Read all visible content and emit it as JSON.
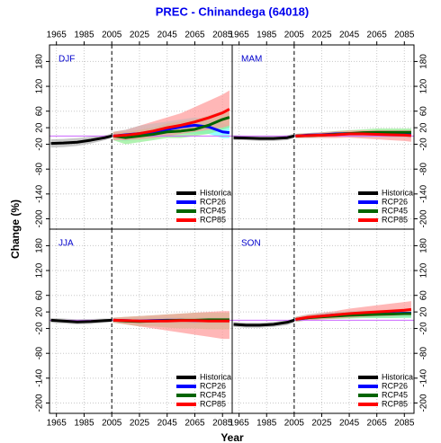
{
  "title": "PREC  - Chinandega (64018)",
  "x_label": "Year",
  "y_label": "Change (%)",
  "chart_data": [
    {
      "type": "line",
      "label": "DJF",
      "xlim": [
        1960,
        2092
      ],
      "ylim": [
        -225,
        220
      ],
      "xticks": [
        1965,
        1985,
        2005,
        2025,
        2045,
        2065,
        2085
      ],
      "yticks": [
        -200,
        -140,
        -80,
        -20,
        20,
        60,
        120,
        180
      ],
      "grid": true,
      "divider": 2005,
      "reference_line": 0,
      "legend": "lower right",
      "series": [
        {
          "name": "Historical",
          "color": "#000000",
          "band_color": "#b0b0b0",
          "x": [
            1961,
            1970,
            1980,
            1990,
            2000,
            2005
          ],
          "values": [
            -18,
            -17,
            -15,
            -10,
            -4,
            0
          ],
          "lower": [
            -28,
            -27,
            -24,
            -18,
            -10,
            -5
          ],
          "upper": [
            -8,
            -7,
            -5,
            -2,
            2,
            5
          ]
        },
        {
          "name": "RCP26",
          "color": "#0000ff",
          "band_color": "#66ffff",
          "x": [
            2006,
            2015,
            2025,
            2035,
            2045,
            2055,
            2065,
            2075,
            2085,
            2090
          ],
          "values": [
            0,
            3,
            6,
            10,
            16,
            22,
            26,
            22,
            10,
            8
          ],
          "lower": [
            -10,
            -12,
            -8,
            -5,
            0,
            5,
            5,
            5,
            -5,
            -5
          ],
          "upper": [
            10,
            15,
            25,
            30,
            35,
            40,
            45,
            40,
            30,
            25
          ]
        },
        {
          "name": "RCP45",
          "color": "#006400",
          "band_color": "#90ee90",
          "x": [
            2006,
            2015,
            2025,
            2035,
            2045,
            2055,
            2065,
            2075,
            2085,
            2090
          ],
          "values": [
            0,
            -4,
            0,
            4,
            10,
            12,
            16,
            26,
            40,
            45
          ],
          "lower": [
            -10,
            -20,
            -15,
            -10,
            -5,
            -5,
            0,
            5,
            15,
            20
          ],
          "upper": [
            10,
            10,
            15,
            20,
            30,
            35,
            40,
            50,
            60,
            65
          ]
        },
        {
          "name": "RCP85",
          "color": "#ff0000",
          "band_color": "#ff9999",
          "x": [
            2006,
            2015,
            2025,
            2035,
            2045,
            2055,
            2065,
            2075,
            2085,
            2090
          ],
          "values": [
            0,
            2,
            6,
            12,
            20,
            26,
            34,
            44,
            56,
            65
          ],
          "lower": [
            -10,
            -10,
            -8,
            -5,
            0,
            5,
            10,
            15,
            20,
            25
          ],
          "upper": [
            10,
            15,
            25,
            35,
            45,
            55,
            70,
            85,
            100,
            110
          ]
        }
      ]
    },
    {
      "type": "line",
      "label": "MAM",
      "xlim": [
        1960,
        2092
      ],
      "ylim": [
        -225,
        220
      ],
      "xticks": [
        1965,
        1985,
        2005,
        2025,
        2045,
        2065,
        2085
      ],
      "yticks": [
        -200,
        -140,
        -80,
        -20,
        20,
        60,
        120,
        180
      ],
      "grid": true,
      "divider": 2005,
      "reference_line": 0,
      "legend": "lower right",
      "series": [
        {
          "name": "Historical",
          "color": "#000000",
          "band_color": "#b0b0b0",
          "x": [
            1961,
            1970,
            1980,
            1990,
            2000,
            2005
          ],
          "values": [
            -4,
            -5,
            -6,
            -6,
            -4,
            0
          ],
          "lower": [
            -10,
            -10,
            -12,
            -12,
            -10,
            -5
          ],
          "upper": [
            2,
            1,
            0,
            0,
            2,
            5
          ]
        },
        {
          "name": "RCP26",
          "color": "#0000ff",
          "band_color": "#66ffff",
          "x": [
            2006,
            2015,
            2025,
            2035,
            2045,
            2055,
            2065,
            2075,
            2085,
            2090
          ],
          "values": [
            0,
            2,
            3,
            5,
            6,
            5,
            6,
            4,
            5,
            4
          ],
          "lower": [
            -5,
            -4,
            -3,
            -2,
            -2,
            -3,
            -3,
            -4,
            -4,
            -5
          ],
          "upper": [
            5,
            7,
            9,
            11,
            13,
            12,
            13,
            12,
            12,
            11
          ]
        },
        {
          "name": "RCP45",
          "color": "#006400",
          "band_color": "#90ee90",
          "x": [
            2006,
            2015,
            2025,
            2035,
            2045,
            2055,
            2065,
            2075,
            2085,
            2090
          ],
          "values": [
            0,
            1,
            2,
            4,
            6,
            8,
            9,
            9,
            9,
            9
          ],
          "lower": [
            -5,
            -4,
            -3,
            -2,
            -1,
            0,
            0,
            0,
            0,
            0
          ],
          "upper": [
            5,
            7,
            9,
            12,
            14,
            16,
            18,
            18,
            18,
            18
          ]
        },
        {
          "name": "RCP85",
          "color": "#ff0000",
          "band_color": "#ff9999",
          "x": [
            2006,
            2015,
            2025,
            2035,
            2045,
            2055,
            2065,
            2075,
            2085,
            2090
          ],
          "values": [
            0,
            1,
            2,
            3,
            5,
            5,
            4,
            3,
            2,
            1
          ],
          "lower": [
            -5,
            -5,
            -5,
            -5,
            -4,
            -6,
            -8,
            -10,
            -12,
            -14
          ],
          "upper": [
            5,
            7,
            9,
            11,
            13,
            14,
            14,
            14,
            14,
            14
          ]
        }
      ]
    },
    {
      "type": "line",
      "label": "JJA",
      "xlim": [
        1960,
        2092
      ],
      "ylim": [
        -225,
        220
      ],
      "xticks": [
        1965,
        1985,
        2005,
        2025,
        2045,
        2065,
        2085
      ],
      "yticks": [
        -200,
        -140,
        -80,
        -20,
        20,
        60,
        120,
        180
      ],
      "grid": true,
      "divider": 2005,
      "reference_line": 0,
      "legend": "lower right",
      "series": [
        {
          "name": "Historical",
          "color": "#000000",
          "band_color": "#b0b0b0",
          "x": [
            1961,
            1970,
            1980,
            1990,
            2000,
            2005
          ],
          "values": [
            0,
            -2,
            -4,
            -3,
            -1,
            0
          ],
          "lower": [
            -6,
            -8,
            -10,
            -9,
            -6,
            -4
          ],
          "upper": [
            5,
            4,
            2,
            3,
            4,
            4
          ]
        },
        {
          "name": "RCP26",
          "color": "#0000ff",
          "band_color": "#66ffff",
          "x": [
            2006,
            2015,
            2025,
            2035,
            2045,
            2055,
            2065,
            2075,
            2085,
            2090
          ],
          "values": [
            0,
            -1,
            -2,
            -1,
            0,
            0,
            -1,
            -1,
            -1,
            -1
          ],
          "lower": [
            -6,
            -8,
            -10,
            -10,
            -10,
            -10,
            -10,
            -10,
            -10,
            -10
          ],
          "upper": [
            6,
            6,
            6,
            7,
            7,
            7,
            7,
            7,
            7,
            7
          ]
        },
        {
          "name": "RCP45",
          "color": "#006400",
          "band_color": "#90ee90",
          "x": [
            2006,
            2015,
            2025,
            2035,
            2045,
            2055,
            2065,
            2075,
            2085,
            2090
          ],
          "values": [
            0,
            -2,
            -3,
            -2,
            -1,
            0,
            0,
            1,
            1,
            1
          ],
          "lower": [
            -6,
            -10,
            -15,
            -15,
            -18,
            -20,
            -20,
            -22,
            -22,
            -22
          ],
          "upper": [
            6,
            8,
            10,
            12,
            14,
            16,
            18,
            18,
            18,
            18
          ]
        },
        {
          "name": "RCP85",
          "color": "#ff0000",
          "band_color": "#ff9999",
          "x": [
            2006,
            2015,
            2025,
            2035,
            2045,
            2055,
            2065,
            2075,
            2085,
            2090
          ],
          "values": [
            0,
            -1,
            -2,
            -2,
            -2,
            -1,
            -1,
            -2,
            -2,
            -2
          ],
          "lower": [
            -6,
            -10,
            -15,
            -20,
            -25,
            -30,
            -35,
            -40,
            -45,
            -45
          ],
          "upper": [
            6,
            8,
            10,
            12,
            14,
            16,
            18,
            20,
            22,
            22
          ]
        }
      ]
    },
    {
      "type": "line",
      "label": "SON",
      "xlim": [
        1960,
        2092
      ],
      "ylim": [
        -225,
        220
      ],
      "xticks": [
        1965,
        1985,
        2005,
        2025,
        2045,
        2065,
        2085
      ],
      "yticks": [
        -200,
        -140,
        -80,
        -20,
        20,
        60,
        120,
        180
      ],
      "grid": true,
      "divider": 2005,
      "reference_line": 0,
      "legend": "lower right",
      "series": [
        {
          "name": "Historical",
          "color": "#000000",
          "band_color": "#b0b0b0",
          "x": [
            1961,
            1970,
            1980,
            1990,
            2000,
            2005
          ],
          "values": [
            -10,
            -12,
            -12,
            -10,
            -5,
            0
          ],
          "lower": [
            -16,
            -18,
            -18,
            -16,
            -12,
            -6
          ],
          "upper": [
            -4,
            -6,
            -6,
            -4,
            0,
            4
          ]
        },
        {
          "name": "RCP26",
          "color": "#0000ff",
          "band_color": "#66ffff",
          "x": [
            2006,
            2015,
            2025,
            2035,
            2045,
            2055,
            2065,
            2075,
            2085,
            2090
          ],
          "values": [
            2,
            6,
            10,
            13,
            14,
            16,
            15,
            16,
            17,
            17
          ],
          "lower": [
            -4,
            0,
            2,
            4,
            5,
            6,
            6,
            6,
            6,
            6
          ],
          "upper": [
            8,
            14,
            18,
            20,
            22,
            24,
            24,
            24,
            24,
            24
          ]
        },
        {
          "name": "RCP45",
          "color": "#006400",
          "band_color": "#90ee90",
          "x": [
            2006,
            2015,
            2025,
            2035,
            2045,
            2055,
            2065,
            2075,
            2085,
            2090
          ],
          "values": [
            2,
            6,
            8,
            10,
            12,
            13,
            14,
            15,
            16,
            16
          ],
          "lower": [
            -4,
            0,
            2,
            3,
            4,
            5,
            5,
            5,
            6,
            6
          ],
          "upper": [
            8,
            12,
            15,
            18,
            20,
            22,
            24,
            26,
            28,
            28
          ]
        },
        {
          "name": "RCP85",
          "color": "#ff0000",
          "band_color": "#ff9999",
          "x": [
            2006,
            2015,
            2025,
            2035,
            2045,
            2055,
            2065,
            2075,
            2085,
            2090
          ],
          "values": [
            2,
            7,
            10,
            13,
            16,
            18,
            20,
            22,
            24,
            26
          ],
          "lower": [
            -4,
            0,
            2,
            4,
            6,
            8,
            10,
            10,
            12,
            12
          ],
          "upper": [
            8,
            14,
            18,
            22,
            28,
            32,
            36,
            40,
            44,
            46
          ]
        }
      ]
    }
  ]
}
